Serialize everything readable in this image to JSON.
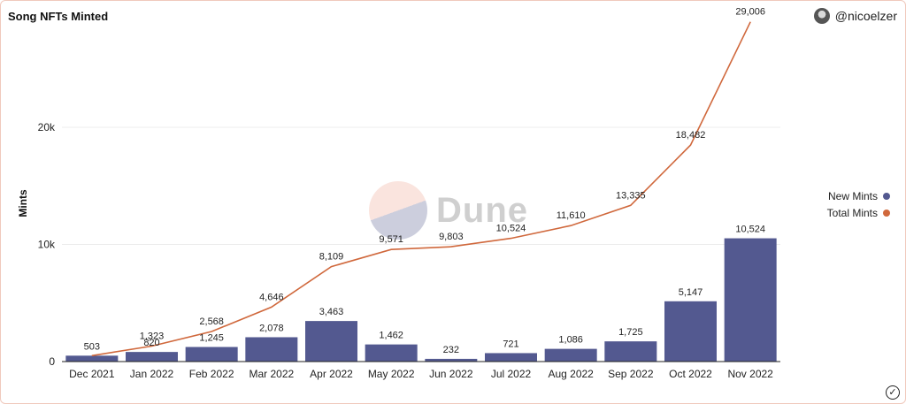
{
  "header": {
    "title": "Song NFTs Minted",
    "author": "@nicoelzer"
  },
  "watermark": {
    "text": "Dune"
  },
  "legend": {
    "items": [
      {
        "label": "New Mints",
        "color": "#535990"
      },
      {
        "label": "Total Mints",
        "color": "#d0683c"
      }
    ]
  },
  "colors": {
    "bar": "#535990",
    "line": "#d0683c",
    "grid": "#ececec",
    "axis": "#222222"
  },
  "chart_data": {
    "type": "bar",
    "title": "Song NFTs Minted",
    "xlabel": "",
    "ylabel": "Mints",
    "ylim": [
      0,
      29500
    ],
    "yticks": [
      0,
      10000,
      20000
    ],
    "ytick_labels": [
      "0",
      "10k",
      "20k"
    ],
    "grid": true,
    "legend_position": "right",
    "categories": [
      "Dec 2021",
      "Jan 2022",
      "Feb 2022",
      "Mar 2022",
      "Apr 2022",
      "May 2022",
      "Jun 2022",
      "Jul 2022",
      "Aug 2022",
      "Sep 2022",
      "Oct 2022",
      "Nov 2022"
    ],
    "series": [
      {
        "name": "New Mints",
        "type": "bar",
        "values": [
          503,
          820,
          1245,
          2078,
          3463,
          1462,
          232,
          721,
          1086,
          1725,
          5147,
          10524
        ],
        "labels": [
          "503",
          "820",
          "1,245",
          "2,078",
          "3,463",
          "1,462",
          "232",
          "721",
          "1,086",
          "1,725",
          "5,147",
          "10,524"
        ]
      },
      {
        "name": "Total Mints",
        "type": "line",
        "values": [
          503,
          1323,
          2568,
          4646,
          8109,
          9571,
          9803,
          10524,
          11610,
          13335,
          18482,
          29006
        ],
        "labels": [
          "503",
          "1,323",
          "2,568",
          "4,646",
          "8,109",
          "9,571",
          "9,803",
          "10,524",
          "11,610",
          "13,335",
          "18,482",
          "29,006"
        ]
      }
    ]
  }
}
